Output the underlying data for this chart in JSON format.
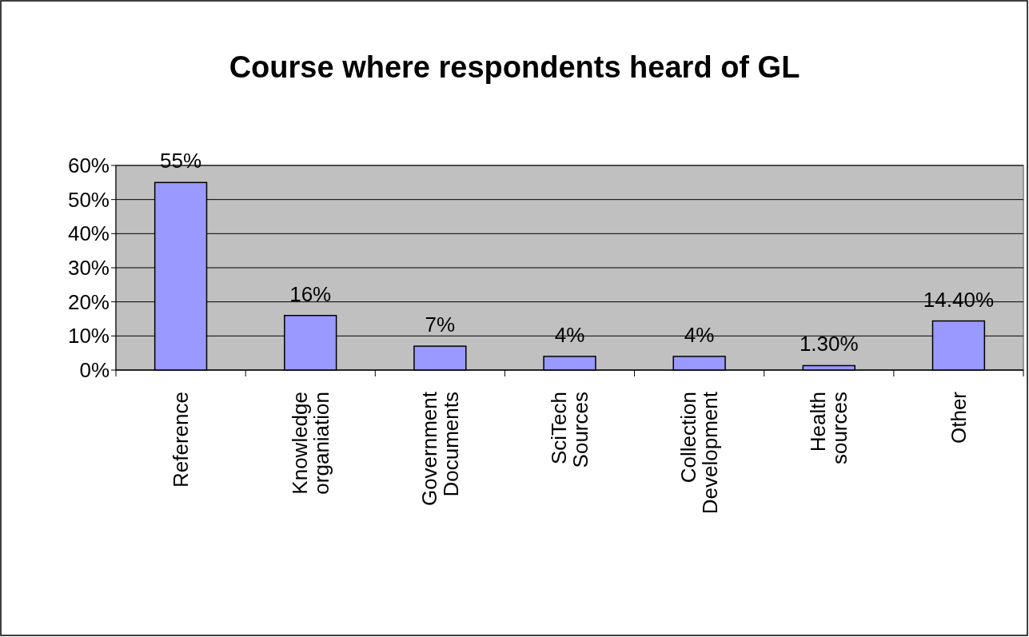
{
  "chart_data": {
    "type": "bar",
    "title": "Course where respondents heard of GL",
    "categories": [
      "Reference",
      "Knowledge organiation",
      "Government Documents",
      "SciTech Sources",
      "Collection Development",
      "Health sources",
      "Other"
    ],
    "values": [
      55,
      16,
      7,
      4,
      4,
      1.3,
      14.4
    ],
    "value_labels": [
      "55%",
      "16%",
      "7%",
      "4%",
      "4%",
      "1.30%",
      "14.40%"
    ],
    "color": "#9999ff",
    "ylim": [
      0,
      60
    ],
    "yticks": [
      {
        "value": 0,
        "label": "0%"
      },
      {
        "value": 10,
        "label": "10%"
      },
      {
        "value": 20,
        "label": "20%"
      },
      {
        "value": 30,
        "label": "30%"
      },
      {
        "value": 40,
        "label": "40%"
      },
      {
        "value": 50,
        "label": "50%"
      },
      {
        "value": 60,
        "label": "60%"
      }
    ],
    "grid": "y"
  }
}
